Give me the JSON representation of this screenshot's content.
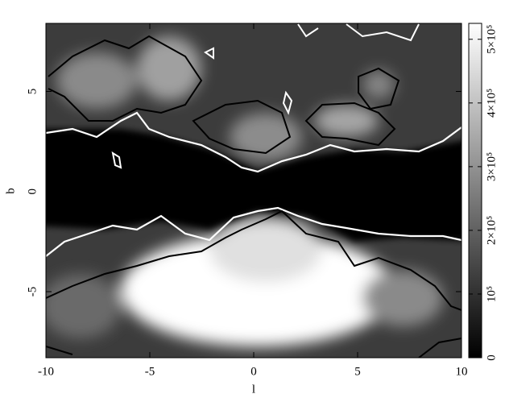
{
  "chart_data": {
    "type": "heatmap",
    "xlabel": "l",
    "ylabel": "b",
    "xlim": [
      -10,
      10
    ],
    "xticks": [
      -10,
      -5,
      0,
      5,
      10
    ],
    "ylim": [
      -8.3,
      8.4
    ],
    "yticks": [
      -5,
      0,
      5
    ],
    "colorbar": {
      "lim": [
        0,
        525000
      ],
      "ticks": [
        0,
        {
          "value": 100000,
          "label": "10⁵"
        },
        {
          "value": 200000,
          "label": "2×10⁵"
        },
        {
          "value": 300000,
          "label": "3×10⁵"
        },
        {
          "value": 400000,
          "label": "4×10⁵"
        },
        {
          "value": 500000,
          "label": "5×10⁵"
        }
      ]
    }
  }
}
